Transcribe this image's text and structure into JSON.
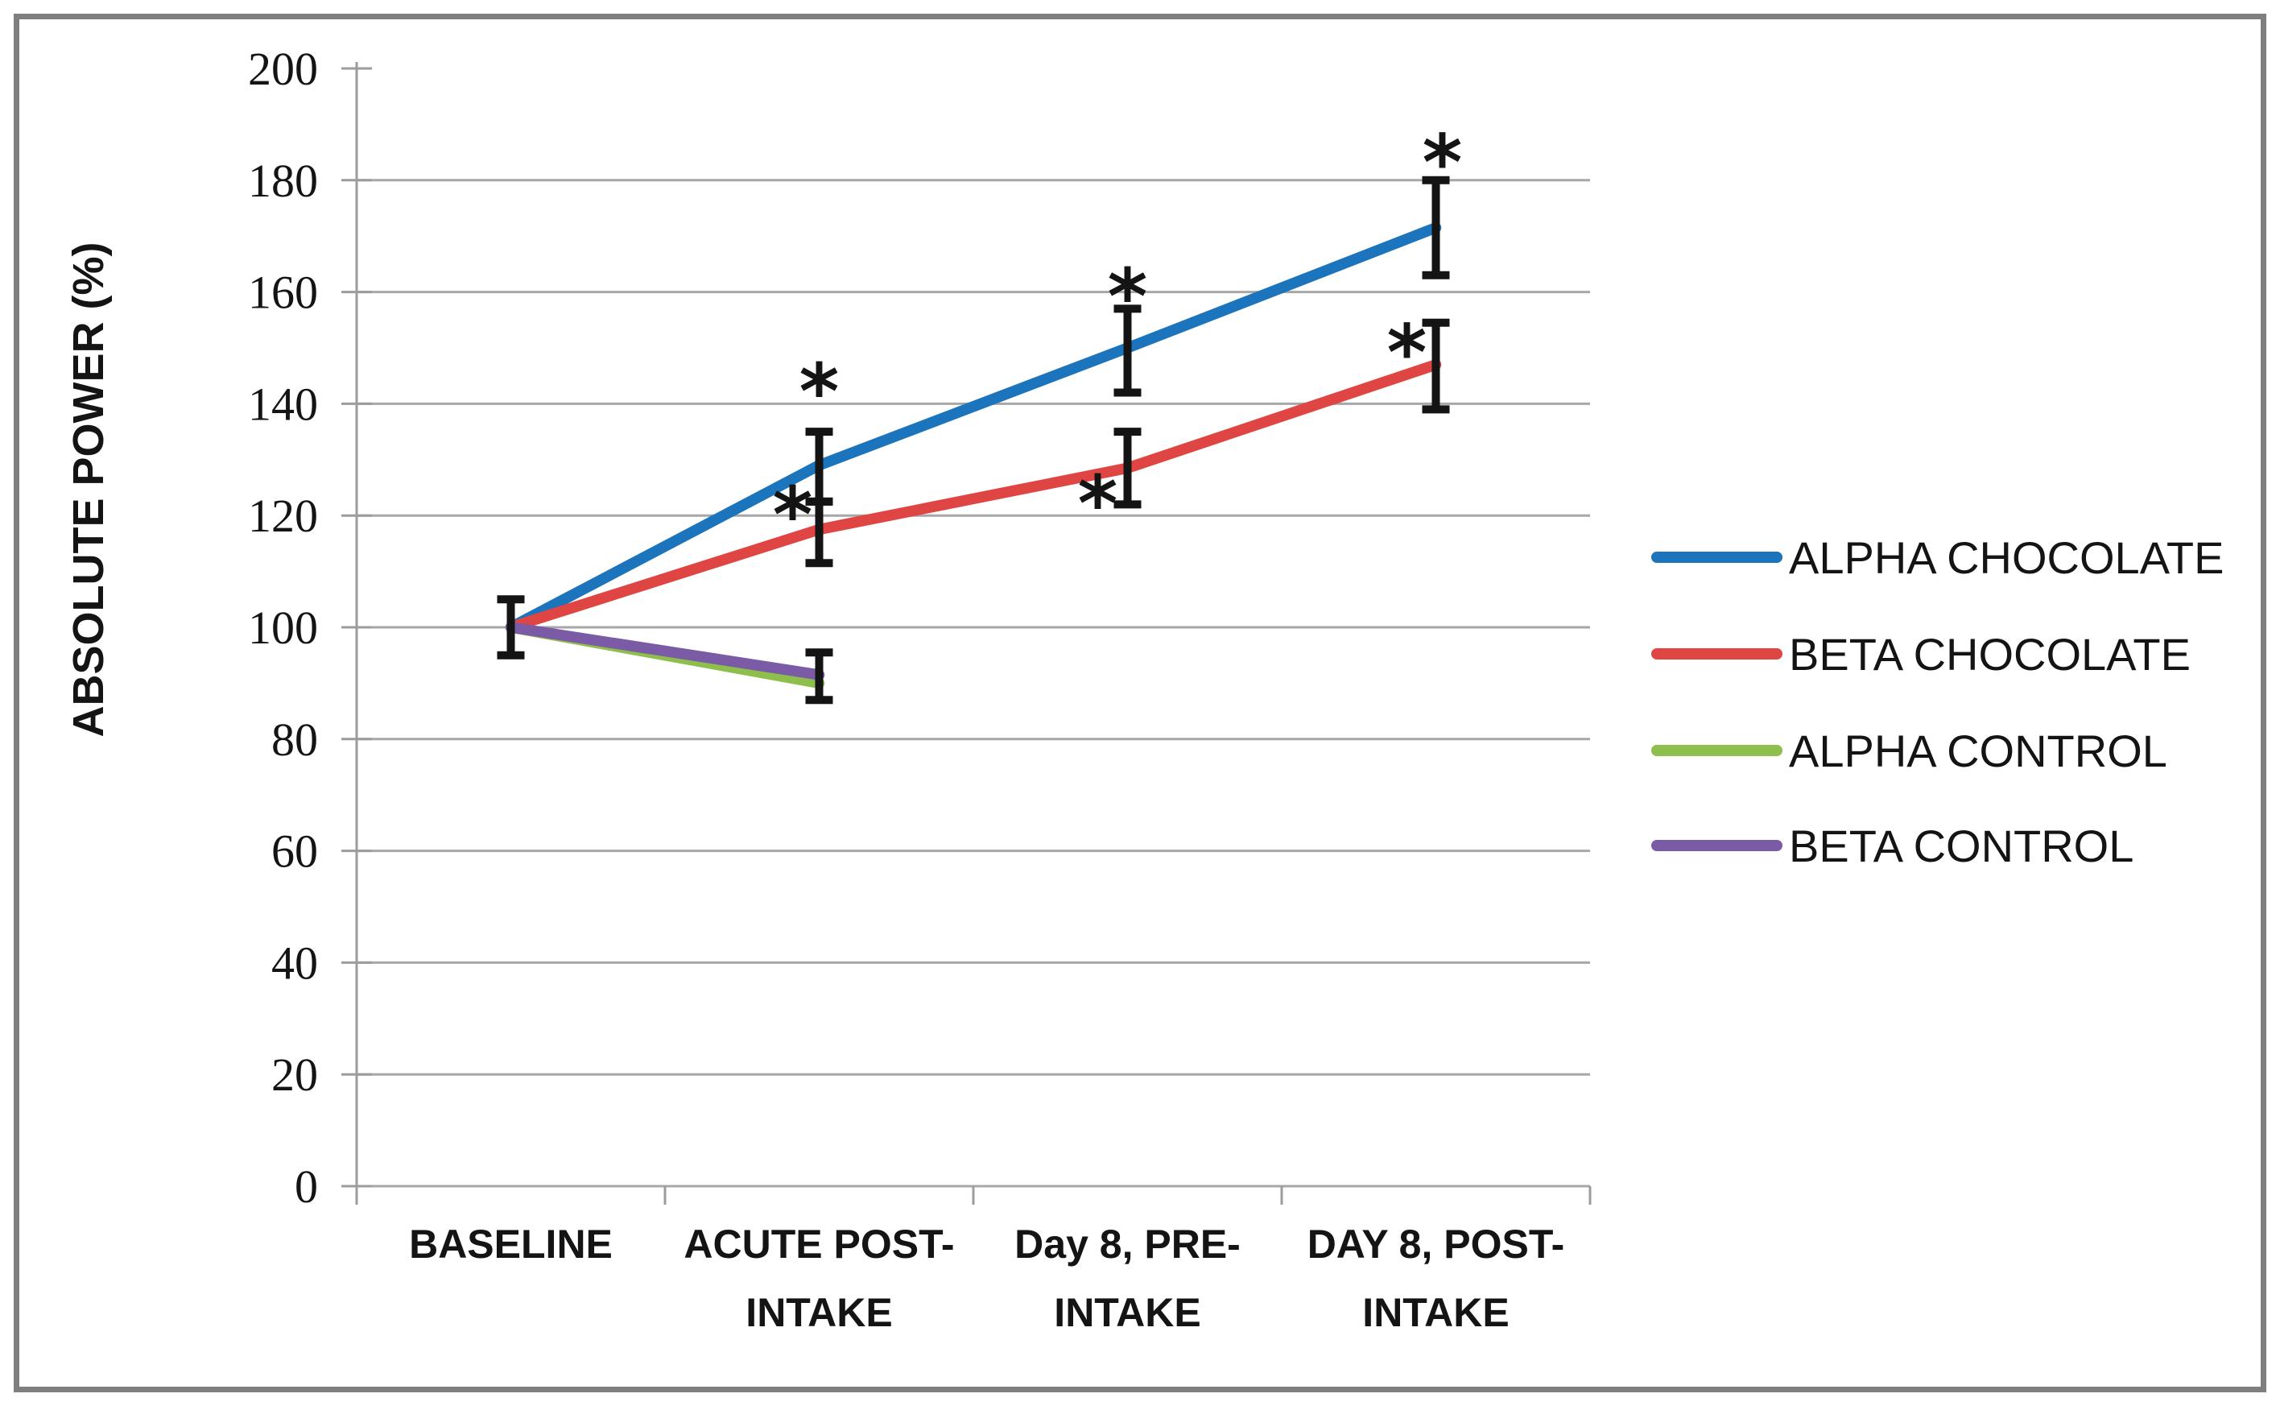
{
  "figure": {
    "background": "#ffffff",
    "border_color": "#7f7f7f"
  },
  "chart_data": {
    "type": "line",
    "title": "",
    "xlabel": "",
    "ylabel": "ABSOLUTE POWER (%)",
    "ylim": [
      0,
      200
    ],
    "ytick_step": 20,
    "yticks": [
      0,
      20,
      40,
      60,
      80,
      100,
      120,
      140,
      160,
      180,
      200
    ],
    "grid": true,
    "gridline_color": "#a7a7a7",
    "axis_color": "#9c9c9c",
    "error_bar_color": "#141414",
    "categories": [
      "BASELINE",
      "ACUTE POST-INTAKE",
      "Day 8, PRE-INTAKE",
      "DAY 8, POST-INTAKE"
    ],
    "category_label_lines": [
      [
        "BASELINE"
      ],
      [
        "ACUTE POST-",
        "INTAKE"
      ],
      [
        "Day 8, PRE-",
        "INTAKE"
      ],
      [
        "DAY 8, POST-",
        "INTAKE"
      ]
    ],
    "series": [
      {
        "name": "ALPHA CHOCOLATE",
        "color": "#1c75bc",
        "values": [
          100,
          129,
          150,
          171.5
        ]
      },
      {
        "name": "BETA CHOCOLATE",
        "color": "#df4542",
        "values": [
          100,
          117.5,
          128.5,
          147
        ]
      },
      {
        "name": "ALPHA CONTROL",
        "color": "#8ebe4b",
        "values": [
          100,
          90,
          null,
          null
        ]
      },
      {
        "name": "BETA CONTROL",
        "color": "#7c5ba6",
        "values": [
          100,
          91.5,
          null,
          null
        ]
      }
    ],
    "error_bars": [
      {
        "ci": 0,
        "category": "BASELINE",
        "series": "ALL GROUPS",
        "low": 95,
        "high": 105
      },
      {
        "ci": 1,
        "category": "ACUTE POST-INTAKE",
        "series": "ALPHA CHOCOLATE",
        "low": 122.5,
        "high": 135
      },
      {
        "ci": 1,
        "category": "ACUTE POST-INTAKE",
        "series": "BETA CHOCOLATE",
        "low": 111.5,
        "high": 122.5
      },
      {
        "ci": 1,
        "category": "ACUTE POST-INTAKE",
        "series": "CONTROLS",
        "low": 87,
        "high": 95.5
      },
      {
        "ci": 2,
        "category": "Day 8, PRE-INTAKE",
        "series": "ALPHA CHOCOLATE",
        "low": 142,
        "high": 157
      },
      {
        "ci": 2,
        "category": "Day 8, PRE-INTAKE",
        "series": "BETA CHOCOLATE",
        "low": 122,
        "high": 135
      },
      {
        "ci": 3,
        "category": "DAY 8, POST-INTAKE",
        "series": "ALPHA CHOCOLATE",
        "low": 163,
        "high": 180
      },
      {
        "ci": 3,
        "category": "DAY 8, POST-INTAKE",
        "series": "BETA CHOCOLATE",
        "low": 139,
        "high": 154.5
      }
    ],
    "significance_markers": [
      {
        "symbol": "*",
        "ci": 1,
        "value": 144,
        "dx": 0
      },
      {
        "symbol": "*",
        "ci": 1,
        "value": 122,
        "dx": -33
      },
      {
        "symbol": "*",
        "ci": 2,
        "value": 161,
        "dx": 0
      },
      {
        "symbol": "*",
        "ci": 2,
        "value": 124,
        "dx": -37
      },
      {
        "symbol": "*",
        "ci": 3,
        "value": 185,
        "dx": 8
      },
      {
        "symbol": "*",
        "ci": 3,
        "value": 151,
        "dx": -36
      }
    ],
    "legend": {
      "position": "right",
      "entries": [
        "ALPHA CHOCOLATE",
        "BETA CHOCOLATE",
        "ALPHA CONTROL",
        "BETA CONTROL"
      ]
    }
  }
}
